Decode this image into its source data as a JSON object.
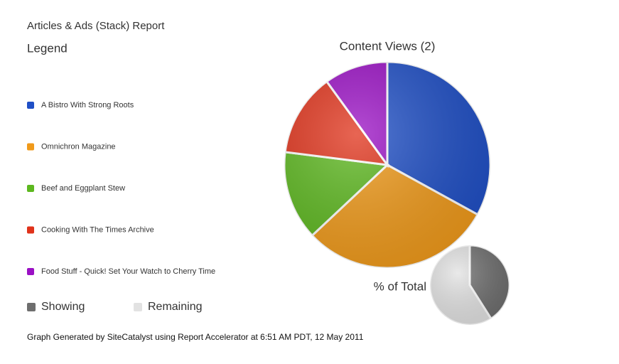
{
  "report_title": "Articles & Ads (Stack) Report",
  "legend_title": "Legend",
  "footer": "Graph Generated by SiteCatalyst using Report Accelerator at  6:51 AM PDT, 12 May 2011",
  "chart_data": [
    {
      "type": "pie",
      "title": "Content Views (2)",
      "categories": [
        "A Bistro With Strong Roots",
        "Omnichron Magazine",
        "Beef and Eggplant Stew",
        "Cooking With The Times Archive",
        "Food Stuff - Quick! Set Your Watch to Cherry Time"
      ],
      "values": [
        33,
        30,
        14,
        13,
        10
      ],
      "colors": [
        "#1f4fc6",
        "#f09a1a",
        "#5db81f",
        "#e0321a",
        "#9a10c4"
      ]
    },
    {
      "type": "pie",
      "title": "% of Total",
      "categories": [
        "Showing",
        "Remaining"
      ],
      "values": [
        41,
        59
      ],
      "colors": [
        "#6e6e6e",
        "#e2e2e2"
      ]
    }
  ]
}
